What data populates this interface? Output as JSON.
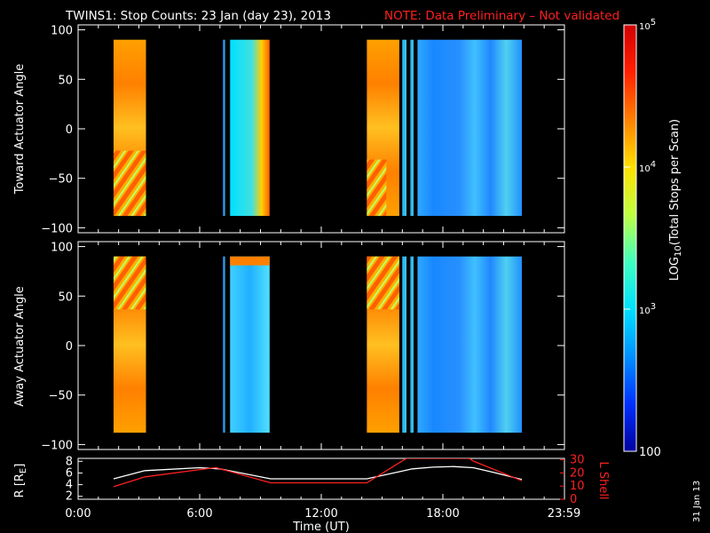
{
  "title": {
    "main": "TWINS1: Stop Counts: 23 Jan (day  23), 2013",
    "note": "NOTE: Data Preliminary – Not validated",
    "note_color": "#ff2020"
  },
  "date_stamp": "31 Jan 13",
  "chart_data": [
    {
      "type": "heatmap",
      "panel": "toward",
      "ylabel": "Toward Actuator Angle",
      "ylim": [
        -105,
        105
      ],
      "yticks": [
        "100",
        "50",
        "0",
        "−50",
        "−100"
      ],
      "ytick_values": [
        100,
        50,
        0,
        -50,
        -100
      ],
      "xlim": [
        0,
        24
      ],
      "data_range_y": [
        -88,
        90
      ],
      "segments": [
        {
          "start": 1.75,
          "end": 3.35,
          "level": "high",
          "pattern": "upper-edge-cyan"
        },
        {
          "start": 7.15,
          "end": 7.25,
          "level": "low"
        },
        {
          "start": 7.5,
          "end": 9.45,
          "level": "medium",
          "pattern": "edge-hot"
        },
        {
          "start": 14.25,
          "end": 15.85,
          "level": "high",
          "pattern": "lower-stripes"
        },
        {
          "start": 16.0,
          "end": 16.2,
          "level": "medium"
        },
        {
          "start": 16.4,
          "end": 16.55,
          "level": "medium"
        },
        {
          "start": 16.75,
          "end": 21.9,
          "level": "low"
        }
      ]
    },
    {
      "type": "heatmap",
      "panel": "away",
      "ylabel": "Away Actuator Angle",
      "ylim": [
        -105,
        105
      ],
      "yticks": [
        "100",
        "50",
        "0",
        "−50",
        "−100"
      ],
      "ytick_values": [
        100,
        50,
        0,
        -50,
        -100
      ],
      "xlim": [
        0,
        24
      ],
      "data_range_y": [
        -88,
        90
      ],
      "segments": [
        {
          "start": 1.75,
          "end": 3.35,
          "level": "high",
          "pattern": "upper-stripes"
        },
        {
          "start": 7.15,
          "end": 7.25,
          "level": "low"
        },
        {
          "start": 7.5,
          "end": 9.45,
          "level": "medium",
          "pattern": "top-hot"
        },
        {
          "start": 14.25,
          "end": 15.85,
          "level": "high",
          "pattern": "upper-stripes"
        },
        {
          "start": 16.0,
          "end": 16.2,
          "level": "medium"
        },
        {
          "start": 16.4,
          "end": 16.55,
          "level": "medium"
        },
        {
          "start": 16.75,
          "end": 21.9,
          "level": "low"
        }
      ]
    },
    {
      "type": "line",
      "panel": "orbit",
      "ylabel": "R [R",
      "ylabel_sub": "E",
      "ylabel_tail": "]",
      "y2label": "L Shell",
      "ylim": [
        1.5,
        8.5
      ],
      "yticks": [
        "8",
        "6",
        "4",
        "2"
      ],
      "ytick_values": [
        8,
        6,
        4,
        2
      ],
      "y2lim": [
        0,
        31
      ],
      "y2ticks": [
        "30",
        "20",
        "10",
        "0"
      ],
      "y2tick_values": [
        30,
        20,
        10,
        0
      ],
      "xlim": [
        0,
        24
      ],
      "xticks": [
        "0:00",
        "6:00",
        "12:00",
        "18:00",
        "23:59"
      ],
      "xtick_values": [
        0,
        6,
        12,
        18,
        23.98
      ],
      "xlabel": "Time (UT)",
      "series": [
        {
          "id": "R",
          "color": "#ffffff",
          "x": [
            1.75,
            3.3,
            6.0,
            7.0,
            9.5,
            14.25,
            16.5,
            17.5,
            18.5,
            19.5,
            20.5,
            21.9
          ],
          "y": [
            5.0,
            6.4,
            6.9,
            6.7,
            5.0,
            5.0,
            6.7,
            7.0,
            7.1,
            6.9,
            6.1,
            4.9
          ]
        },
        {
          "id": "L",
          "color": "#ff2020",
          "x": [
            1.75,
            3.3,
            6.0,
            6.8,
            9.5,
            14.25,
            16.2,
            16.4,
            19.3,
            19.5,
            21.9
          ],
          "y": [
            9.5,
            17.0,
            22.5,
            24.0,
            12.5,
            12.5,
            31.0,
            31.0,
            31.0,
            29.0,
            14.0
          ]
        }
      ]
    }
  ],
  "colorbar": {
    "label": "LOG10(Total Stops per Scan)",
    "label_prefix": "LOG",
    "label_sub": "10",
    "label_suffix": "(Total Stops per Scan)",
    "ticks": [
      {
        "value": 100000,
        "base": "10",
        "exp": "5"
      },
      {
        "value": 10000,
        "base": "10",
        "exp": "4"
      },
      {
        "value": 1000,
        "base": "10",
        "exp": "3"
      },
      {
        "value": 100,
        "text": "100"
      }
    ],
    "range": [
      100,
      100000
    ],
    "colors": [
      "#0000a0",
      "#0030ff",
      "#0090ff",
      "#00e0ff",
      "#40ffc0",
      "#c0ff40",
      "#ffe000",
      "#ff8000",
      "#ff2000",
      "#d00000"
    ]
  }
}
